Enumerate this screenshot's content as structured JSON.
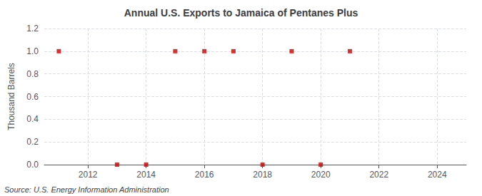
{
  "chart_data": {
    "type": "scatter",
    "title": "Annual U.S. Exports to Jamaica of Pentanes Plus",
    "ylabel": "Thousand Barrels",
    "annotation": "Source: U.S. Energy Information Administration",
    "x": [
      2011,
      2013,
      2014,
      2015,
      2016,
      2017,
      2018,
      2019,
      2020,
      2021
    ],
    "values": [
      1.0,
      0.0,
      0.0,
      1.0,
      1.0,
      1.0,
      0.0,
      1.0,
      0.0,
      1.0
    ],
    "color": "#cc0000",
    "marker": "square",
    "xlim": [
      2010.5,
      2025
    ],
    "xticks": [
      2012,
      2014,
      2016,
      2018,
      2020,
      2022,
      2024
    ],
    "ylim": [
      0.0,
      1.2
    ],
    "yticks": [
      {
        "value": 0,
        "label": "0.0"
      },
      0.2,
      0.4,
      0.6,
      0.8,
      {
        "value": 1,
        "label": "1.0"
      },
      1.2
    ],
    "grid": true
  }
}
